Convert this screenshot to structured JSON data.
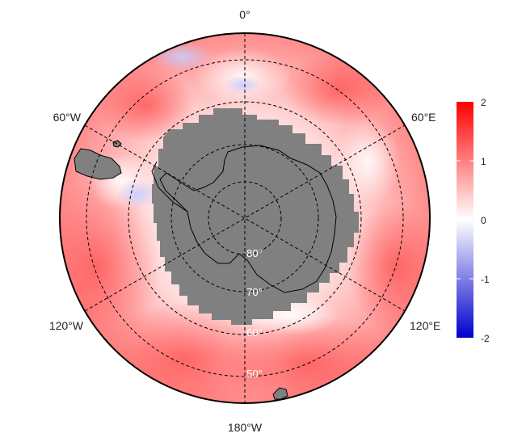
{
  "map": {
    "projection": "south-polar stereographic",
    "longitude_labels": {
      "top": "0°",
      "upper_left": "60°W",
      "upper_right": "60°E",
      "lower_left": "120°W",
      "lower_right": "120°E",
      "bottom": "180°W"
    },
    "latitude_labels": [
      "80°",
      "70°",
      "60°",
      "50°"
    ],
    "colors": {
      "land_mask": "#808080",
      "coastline": "#000000",
      "graticule": "#000000",
      "outline": "#000000"
    }
  },
  "colorbar": {
    "ticks": [
      "2",
      "1",
      "0",
      "-1",
      "-2"
    ],
    "range": [
      -2,
      2
    ],
    "colors": {
      "high": "#ff0000",
      "mid": "#ffffff",
      "low": "#0000cc"
    }
  }
}
